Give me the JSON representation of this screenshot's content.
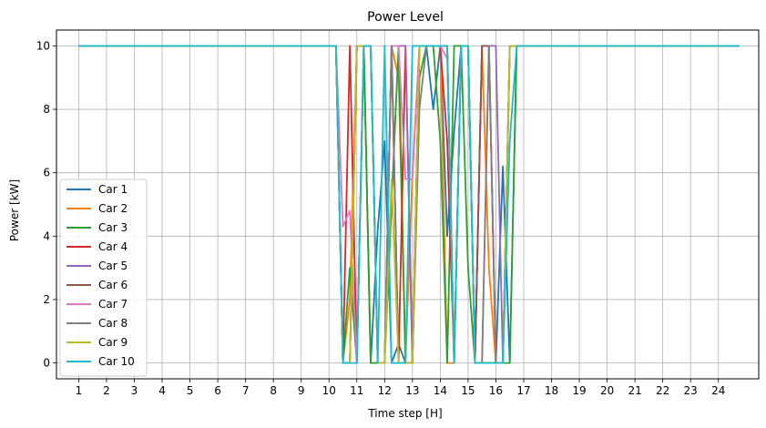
{
  "chart_data": {
    "type": "line",
    "title": "Power Level",
    "xlabel": "Time step [H]",
    "ylabel": "Power [kW]",
    "xlim": [
      0.2,
      25.45
    ],
    "ylim": [
      -0.5,
      10.5
    ],
    "xticks": [
      1,
      2,
      3,
      4,
      5,
      6,
      7,
      8,
      9,
      10,
      11,
      12,
      13,
      14,
      15,
      16,
      17,
      18,
      19,
      20,
      21,
      22,
      23,
      24
    ],
    "yticks": [
      0,
      2,
      4,
      6,
      8,
      10
    ],
    "grid": true,
    "legend_position": "lower left",
    "series": [
      {
        "name": "Car 1",
        "color": "#1f77b4",
        "points": [
          [
            1,
            10
          ],
          [
            10.25,
            10
          ],
          [
            10.5,
            0
          ],
          [
            10.75,
            0
          ],
          [
            11,
            10
          ],
          [
            11.25,
            10
          ],
          [
            11.5,
            0
          ],
          [
            11.75,
            4.2
          ],
          [
            12,
            7
          ],
          [
            12.25,
            0
          ],
          [
            12.5,
            0.6
          ],
          [
            12.75,
            0
          ],
          [
            13,
            0
          ],
          [
            13.25,
            10
          ],
          [
            13.5,
            10
          ],
          [
            13.75,
            8
          ],
          [
            14,
            10
          ],
          [
            14.25,
            4
          ],
          [
            14.5,
            7.3
          ],
          [
            14.75,
            10
          ],
          [
            15,
            10
          ],
          [
            15.25,
            0
          ],
          [
            15.5,
            0
          ],
          [
            15.75,
            0
          ],
          [
            16,
            0
          ],
          [
            16.25,
            6.2
          ],
          [
            16.5,
            0
          ],
          [
            16.75,
            10
          ],
          [
            24.75,
            10
          ]
        ]
      },
      {
        "name": "Car 2",
        "color": "#ff7f0e",
        "points": [
          [
            1,
            10
          ],
          [
            10.25,
            10
          ],
          [
            10.5,
            0
          ],
          [
            10.75,
            2
          ],
          [
            11,
            10
          ],
          [
            11.25,
            10
          ],
          [
            11.5,
            0
          ],
          [
            11.75,
            0
          ],
          [
            12,
            0
          ],
          [
            12.25,
            10
          ],
          [
            12.5,
            9
          ],
          [
            12.75,
            0
          ],
          [
            13,
            6
          ],
          [
            13.25,
            10
          ],
          [
            13.5,
            10
          ],
          [
            13.75,
            10
          ],
          [
            14,
            10
          ],
          [
            14.25,
            0
          ],
          [
            14.5,
            0
          ],
          [
            14.75,
            10
          ],
          [
            15,
            10
          ],
          [
            15.25,
            0
          ],
          [
            15.5,
            10
          ],
          [
            15.75,
            3
          ],
          [
            16,
            0
          ],
          [
            16.25,
            0
          ],
          [
            16.5,
            10
          ],
          [
            16.75,
            10
          ],
          [
            24.75,
            10
          ]
        ]
      },
      {
        "name": "Car 3",
        "color": "#2ca02c",
        "points": [
          [
            1,
            10
          ],
          [
            10.25,
            10
          ],
          [
            10.5,
            0
          ],
          [
            10.75,
            3
          ],
          [
            11,
            0
          ],
          [
            11.25,
            10
          ],
          [
            11.5,
            0
          ],
          [
            11.75,
            0
          ],
          [
            12,
            0
          ],
          [
            12.25,
            5
          ],
          [
            12.5,
            10
          ],
          [
            12.75,
            0
          ],
          [
            13,
            0
          ],
          [
            13.25,
            9
          ],
          [
            13.5,
            10
          ],
          [
            13.75,
            10
          ],
          [
            14,
            7
          ],
          [
            14.25,
            0
          ],
          [
            14.5,
            10
          ],
          [
            14.75,
            10
          ],
          [
            15,
            3
          ],
          [
            15.25,
            0
          ],
          [
            15.5,
            0
          ],
          [
            15.75,
            0
          ],
          [
            16,
            0
          ],
          [
            16.25,
            0
          ],
          [
            16.5,
            0
          ],
          [
            16.75,
            10
          ],
          [
            24.75,
            10
          ]
        ]
      },
      {
        "name": "Car 4",
        "color": "#d62728",
        "points": [
          [
            1,
            10
          ],
          [
            10.25,
            10
          ],
          [
            10.5,
            0
          ],
          [
            10.75,
            10
          ],
          [
            11,
            0
          ],
          [
            11.25,
            10
          ],
          [
            11.5,
            10
          ],
          [
            11.75,
            0
          ],
          [
            12,
            0
          ],
          [
            12.25,
            10
          ],
          [
            12.5,
            0
          ],
          [
            12.75,
            10
          ],
          [
            13,
            0
          ],
          [
            13.25,
            10
          ],
          [
            13.5,
            10
          ],
          [
            13.75,
            10
          ],
          [
            14,
            10
          ],
          [
            14.25,
            7
          ],
          [
            14.5,
            0
          ],
          [
            14.75,
            10
          ],
          [
            15,
            10
          ],
          [
            15.25,
            0
          ],
          [
            15.5,
            10
          ],
          [
            15.75,
            10
          ],
          [
            16,
            0
          ],
          [
            16.25,
            0
          ],
          [
            16.5,
            10
          ],
          [
            16.75,
            10
          ],
          [
            24.75,
            10
          ]
        ]
      },
      {
        "name": "Car 5",
        "color": "#9467bd",
        "points": [
          [
            1,
            10
          ],
          [
            10.25,
            10
          ],
          [
            10.5,
            0
          ],
          [
            10.75,
            0
          ],
          [
            11,
            10
          ],
          [
            11.25,
            10
          ],
          [
            11.5,
            10
          ],
          [
            11.75,
            0
          ],
          [
            12,
            0
          ],
          [
            12.25,
            10
          ],
          [
            12.5,
            10
          ],
          [
            12.75,
            10
          ],
          [
            13,
            0
          ],
          [
            13.25,
            10
          ],
          [
            13.5,
            10
          ],
          [
            13.75,
            10
          ],
          [
            14,
            10
          ],
          [
            14.25,
            10
          ],
          [
            14.5,
            0
          ],
          [
            14.75,
            10
          ],
          [
            15,
            10
          ],
          [
            15.25,
            0
          ],
          [
            15.5,
            10
          ],
          [
            15.75,
            10
          ],
          [
            16,
            10
          ],
          [
            16.25,
            0
          ],
          [
            16.5,
            10
          ],
          [
            16.75,
            10
          ],
          [
            24.75,
            10
          ]
        ]
      },
      {
        "name": "Car 6",
        "color": "#8c564b",
        "points": [
          [
            1,
            10
          ],
          [
            10.25,
            10
          ],
          [
            10.5,
            0
          ],
          [
            10.75,
            0
          ],
          [
            11,
            10
          ],
          [
            11.25,
            10
          ],
          [
            11.5,
            10
          ],
          [
            11.75,
            0
          ],
          [
            12,
            0
          ],
          [
            12.25,
            10
          ],
          [
            12.5,
            0
          ],
          [
            12.75,
            0
          ],
          [
            13,
            0
          ],
          [
            13.25,
            10
          ],
          [
            13.5,
            10
          ],
          [
            13.75,
            10
          ],
          [
            14,
            10
          ],
          [
            14.25,
            10
          ],
          [
            14.5,
            0
          ],
          [
            14.75,
            10
          ],
          [
            15,
            10
          ],
          [
            15.25,
            0
          ],
          [
            15.5,
            10
          ],
          [
            15.75,
            10
          ],
          [
            16,
            0
          ],
          [
            16.25,
            0
          ],
          [
            16.5,
            10
          ],
          [
            16.75,
            10
          ],
          [
            24.75,
            10
          ]
        ]
      },
      {
        "name": "Car 7",
        "color": "#e377c2",
        "points": [
          [
            1,
            10
          ],
          [
            10.25,
            10
          ],
          [
            10.5,
            4.3
          ],
          [
            10.75,
            4.8
          ],
          [
            11,
            0
          ],
          [
            11.25,
            10
          ],
          [
            11.5,
            10
          ],
          [
            11.75,
            0
          ],
          [
            12,
            0
          ],
          [
            12.25,
            10
          ],
          [
            12.5,
            10
          ],
          [
            12.75,
            5.8
          ],
          [
            13,
            5.8
          ],
          [
            13.25,
            10
          ],
          [
            13.5,
            10
          ],
          [
            13.75,
            10
          ],
          [
            14,
            10
          ],
          [
            14.25,
            9.6
          ],
          [
            14.5,
            0
          ],
          [
            14.75,
            10
          ],
          [
            15,
            10
          ],
          [
            15.25,
            0
          ],
          [
            15.5,
            0
          ],
          [
            15.75,
            10
          ],
          [
            16,
            0
          ],
          [
            16.25,
            0
          ],
          [
            16.5,
            10
          ],
          [
            16.75,
            10
          ],
          [
            24.75,
            10
          ]
        ]
      },
      {
        "name": "Car 8",
        "color": "#7f7f7f",
        "points": [
          [
            1,
            10
          ],
          [
            10.25,
            10
          ],
          [
            10.5,
            0
          ],
          [
            10.75,
            0
          ],
          [
            11,
            10
          ],
          [
            11.25,
            10
          ],
          [
            11.5,
            10
          ],
          [
            11.75,
            0
          ],
          [
            12,
            0
          ],
          [
            12.25,
            10
          ],
          [
            12.5,
            0
          ],
          [
            12.75,
            0
          ],
          [
            13,
            0
          ],
          [
            13.25,
            8
          ],
          [
            13.5,
            10
          ],
          [
            13.75,
            10
          ],
          [
            14,
            10
          ],
          [
            14.25,
            10
          ],
          [
            14.5,
            0
          ],
          [
            14.75,
            10
          ],
          [
            15,
            10
          ],
          [
            15.25,
            0
          ],
          [
            15.5,
            0
          ],
          [
            15.75,
            10
          ],
          [
            16,
            0
          ],
          [
            16.25,
            0
          ],
          [
            16.5,
            10
          ],
          [
            16.75,
            10
          ],
          [
            24.75,
            10
          ]
        ]
      },
      {
        "name": "Car 9",
        "color": "#bcbd22",
        "points": [
          [
            1,
            10
          ],
          [
            10.25,
            10
          ],
          [
            10.5,
            0
          ],
          [
            10.75,
            0
          ],
          [
            11,
            10
          ],
          [
            11.25,
            10
          ],
          [
            11.5,
            10
          ],
          [
            11.75,
            0
          ],
          [
            12,
            0
          ],
          [
            12.25,
            5.8
          ],
          [
            12.5,
            0
          ],
          [
            12.75,
            0
          ],
          [
            13,
            0
          ],
          [
            13.25,
            10
          ],
          [
            13.5,
            10
          ],
          [
            13.75,
            10
          ],
          [
            14,
            10
          ],
          [
            14.25,
            10
          ],
          [
            14.5,
            0
          ],
          [
            14.75,
            10
          ],
          [
            15,
            10
          ],
          [
            15.25,
            0
          ],
          [
            15.5,
            0
          ],
          [
            15.75,
            0
          ],
          [
            16,
            0
          ],
          [
            16.25,
            0
          ],
          [
            16.5,
            10
          ],
          [
            16.75,
            10
          ],
          [
            24.75,
            10
          ]
        ]
      },
      {
        "name": "Car 10",
        "color": "#17becf",
        "points": [
          [
            1,
            10
          ],
          [
            10.25,
            10
          ],
          [
            10.5,
            0
          ],
          [
            10.75,
            0
          ],
          [
            11,
            0
          ],
          [
            11.25,
            10
          ],
          [
            11.5,
            10
          ],
          [
            11.75,
            0
          ],
          [
            12,
            10
          ],
          [
            12.25,
            0
          ],
          [
            12.5,
            0
          ],
          [
            12.75,
            0
          ],
          [
            13,
            10
          ],
          [
            13.25,
            10
          ],
          [
            13.5,
            10
          ],
          [
            13.75,
            10
          ],
          [
            14,
            10
          ],
          [
            14.25,
            10
          ],
          [
            14.5,
            0
          ],
          [
            14.75,
            10
          ],
          [
            15,
            10
          ],
          [
            15.25,
            0
          ],
          [
            15.5,
            0
          ],
          [
            15.75,
            0
          ],
          [
            16,
            0
          ],
          [
            16.25,
            0
          ],
          [
            16.5,
            7
          ],
          [
            16.75,
            10
          ],
          [
            24.75,
            10
          ]
        ]
      }
    ]
  }
}
